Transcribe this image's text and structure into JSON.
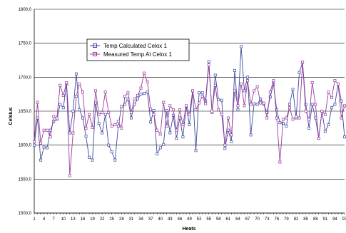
{
  "chart_data": {
    "type": "line",
    "xlabel": "Heats",
    "ylabel": "Celsius",
    "ylim": [
      1500,
      1800
    ],
    "yticks": [
      "1500,0",
      "1550,0",
      "1600,0",
      "1650,0",
      "1700,0",
      "1750,0",
      "1800,0"
    ],
    "xlim": [
      1,
      97
    ],
    "xticks": [
      "1",
      "4",
      "7",
      "10",
      "13",
      "16",
      "19",
      "22",
      "25",
      "28",
      "31",
      "34",
      "37",
      "40",
      "43",
      "46",
      "49",
      "52",
      "55",
      "58",
      "61",
      "64",
      "67",
      "70",
      "73",
      "76",
      "79",
      "82",
      "85",
      "88",
      "91",
      "94",
      "97"
    ],
    "grid": "horizontal",
    "legend_position": "top-left",
    "series": [
      {
        "name": "Temp Calculated Celox 1",
        "color": "#3c4aa0",
        "values": [
          1600,
          1640,
          1578,
          1597,
          1596,
          1622,
          1635,
          1638,
          1660,
          1655,
          1690,
          1618,
          1650,
          1705,
          1652,
          1640,
          1613,
          1582,
          1578,
          1662,
          1632,
          1618,
          1645,
          1600,
          1590,
          1578,
          1628,
          1657,
          1660,
          1668,
          1640,
          1660,
          1668,
          1675,
          1676,
          1678,
          1634,
          1651,
          1587,
          1596,
          1601,
          1651,
          1618,
          1644,
          1610,
          1640,
          1612,
          1657,
          1630,
          1680,
          1592,
          1677,
          1677,
          1665,
          1723,
          1648,
          1703,
          1667,
          1666,
          1595,
          1622,
          1605,
          1710,
          1652,
          1745,
          1680,
          1700,
          1615,
          1661,
          1660,
          1668,
          1660,
          1648,
          1671,
          1690,
          1652,
          1633,
          1632,
          1628,
          1660,
          1682,
          1640,
          1707,
          1722,
          1660,
          1625,
          1660,
          1640,
          1610,
          1650,
          1620,
          1630,
          1655,
          1660,
          1690,
          1665,
          1612
        ]
      },
      {
        "name": "Measured Temp At Celox 1",
        "color": "#9b3a9b",
        "values": [
          1605,
          1663,
          1603,
          1622,
          1622,
          1612,
          1642,
          1640,
          1688,
          1673,
          1692,
          1555,
          1618,
          1672,
          1690,
          1678,
          1625,
          1645,
          1626,
          1680,
          1645,
          1648,
          1678,
          1648,
          1628,
          1630,
          1635,
          1625,
          1672,
          1677,
          1648,
          1668,
          1673,
          1684,
          1706,
          1693,
          1653,
          1645,
          1622,
          1616,
          1663,
          1628,
          1658,
          1652,
          1622,
          1652,
          1630,
          1658,
          1645,
          1680,
          1652,
          1662,
          1672,
          1661,
          1718,
          1650,
          1688,
          1652,
          1645,
          1600,
          1640,
          1615,
          1680,
          1658,
          1690,
          1658,
          1695,
          1660,
          1680,
          1686,
          1662,
          1662,
          1640,
          1678,
          1695,
          1640,
          1575,
          1638,
          1640,
          1655,
          1638,
          1642,
          1640,
          1722,
          1650,
          1638,
          1692,
          1660,
          1610,
          1650,
          1645,
          1678,
          1670,
          1695,
          1690,
          1640,
          1658
        ]
      }
    ]
  }
}
